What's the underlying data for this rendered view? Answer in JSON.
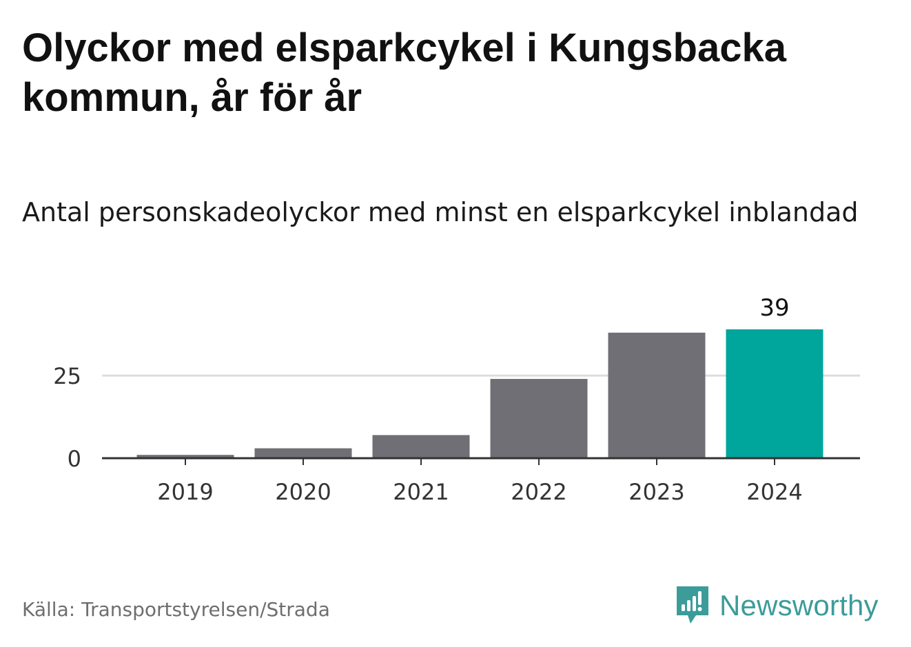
{
  "title": "Olyckor med elsparkcykel i Kungsbacka kommun, år för år",
  "subtitle": "Antal personskadeolyckor med minst en elsparkcykel inblandad",
  "source": "Källa: Transportstyrelsen/Strada",
  "brand": {
    "name": "Newsworthy",
    "icon": "newsworthy-logo-icon",
    "color": "#3c9c9a"
  },
  "chart_data": {
    "type": "bar",
    "categories": [
      "2019",
      "2020",
      "2021",
      "2022",
      "2023",
      "2024"
    ],
    "values": [
      1,
      3,
      7,
      24,
      38,
      39
    ],
    "ylim": [
      0,
      39
    ],
    "yticks": [
      0,
      25
    ],
    "grid": true,
    "highlight_index": 5,
    "value_labels": [
      {
        "index": 5,
        "text": "39"
      }
    ],
    "colors": {
      "bar": "#706f75",
      "highlight": "#00a59b",
      "grid": "#dddddd",
      "axis": "#333333"
    }
  }
}
